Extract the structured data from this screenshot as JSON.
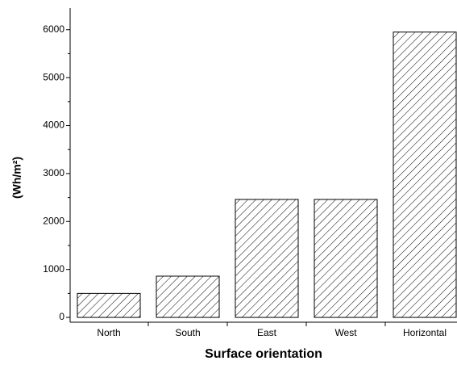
{
  "chart_data": {
    "type": "bar",
    "x_label": "Surface orientation",
    "y_label": "(Wh/m²)",
    "categories": [
      "North",
      "South",
      "East",
      "West",
      "Horizontal"
    ],
    "values": [
      500,
      860,
      2460,
      2460,
      5950
    ],
    "ylim": [
      -100,
      6400
    ],
    "yticks": [
      0,
      1000,
      2000,
      3000,
      4000,
      5000,
      6000
    ]
  }
}
